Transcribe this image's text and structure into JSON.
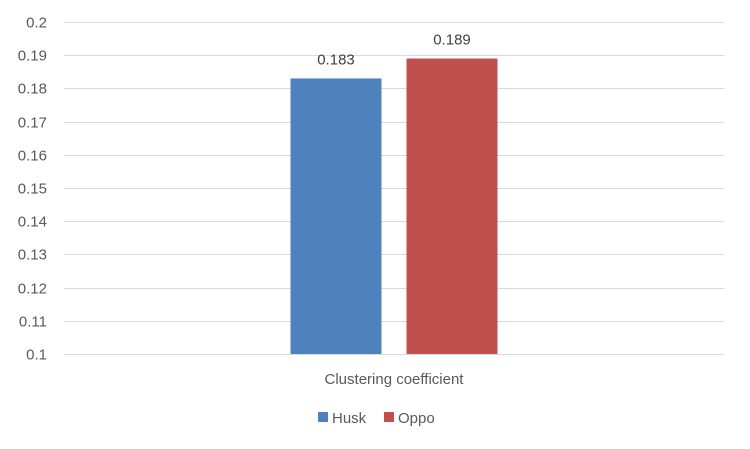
{
  "chart_data": {
    "type": "bar",
    "title": "",
    "xlabel": "",
    "ylabel": "",
    "categories": [
      "Clustering coefficient"
    ],
    "series": [
      {
        "name": "Husk",
        "values": [
          0.183
        ],
        "data_labels": [
          "0.183"
        ],
        "color": "#4f81bd"
      },
      {
        "name": "Oppo",
        "values": [
          0.189
        ],
        "data_labels": [
          "0.189"
        ],
        "color": "#c0504d"
      }
    ],
    "ylim": [
      0.1,
      0.2
    ],
    "yticks": [
      0.1,
      0.11,
      0.12,
      0.13,
      0.14,
      0.15,
      0.16,
      0.17,
      0.18,
      0.19,
      0.2
    ],
    "ytick_labels": [
      "0.1",
      "0.11",
      "0.12",
      "0.13",
      "0.14",
      "0.15",
      "0.16",
      "0.17",
      "0.18",
      "0.19",
      "0.2"
    ],
    "grid": true,
    "legend_position": "bottom",
    "gridline_color": "#d9d9d9",
    "text_color": "#595959"
  }
}
